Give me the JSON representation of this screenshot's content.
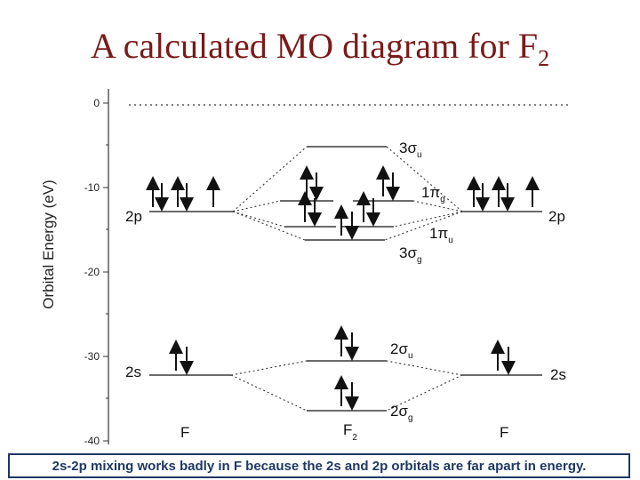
{
  "title": {
    "main": "A calculated MO diagram for F",
    "subscript": "2"
  },
  "axis": {
    "ylabel": "Orbital Energy (eV)",
    "ticks": [
      "0",
      "-10",
      "-20",
      "-30",
      "-40"
    ]
  },
  "atomic_orbitals": {
    "left_2p": "2p",
    "left_2s": "2s",
    "right_2p": "2p",
    "right_2s": "2s"
  },
  "molecular_orbitals": {
    "sigma_u_3": {
      "prefix": "3",
      "symbol": "σ",
      "sub": "u"
    },
    "pi_g_1": {
      "prefix": "1",
      "symbol": "π",
      "sub": "g"
    },
    "pi_u_1": {
      "prefix": "1",
      "symbol": "π",
      "sub": "u"
    },
    "sigma_g_3": {
      "prefix": "3",
      "symbol": "σ",
      "sub": "g"
    },
    "sigma_u_2": {
      "prefix": "2",
      "symbol": "σ",
      "sub": "u"
    },
    "sigma_g_2": {
      "prefix": "2",
      "symbol": "σ",
      "sub": "g"
    }
  },
  "column_labels": {
    "left": "F",
    "middle": "F",
    "middle_sub": "2",
    "right": "F"
  },
  "caption": "2s-2p mixing works badly in F because the 2s and 2p orbitals are far apart in energy."
}
